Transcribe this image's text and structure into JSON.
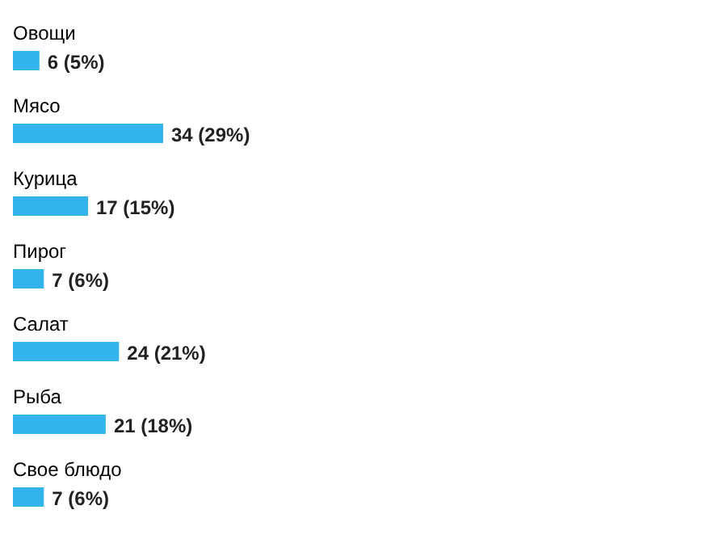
{
  "chart_data": {
    "type": "bar",
    "orientation": "horizontal",
    "categories": [
      "Овощи",
      "Мясо",
      "Курица",
      "Пирог",
      "Салат",
      "Рыба",
      "Свое блюдо"
    ],
    "values": [
      6,
      34,
      17,
      7,
      24,
      21,
      7
    ],
    "value_labels": [
      "6 (5%)",
      "34 (29%)",
      "17 (15%)",
      "7 (6%)",
      "24 (21%)",
      "21 (18%)",
      "7 (6%)"
    ],
    "color": "#33b4ea"
  }
}
